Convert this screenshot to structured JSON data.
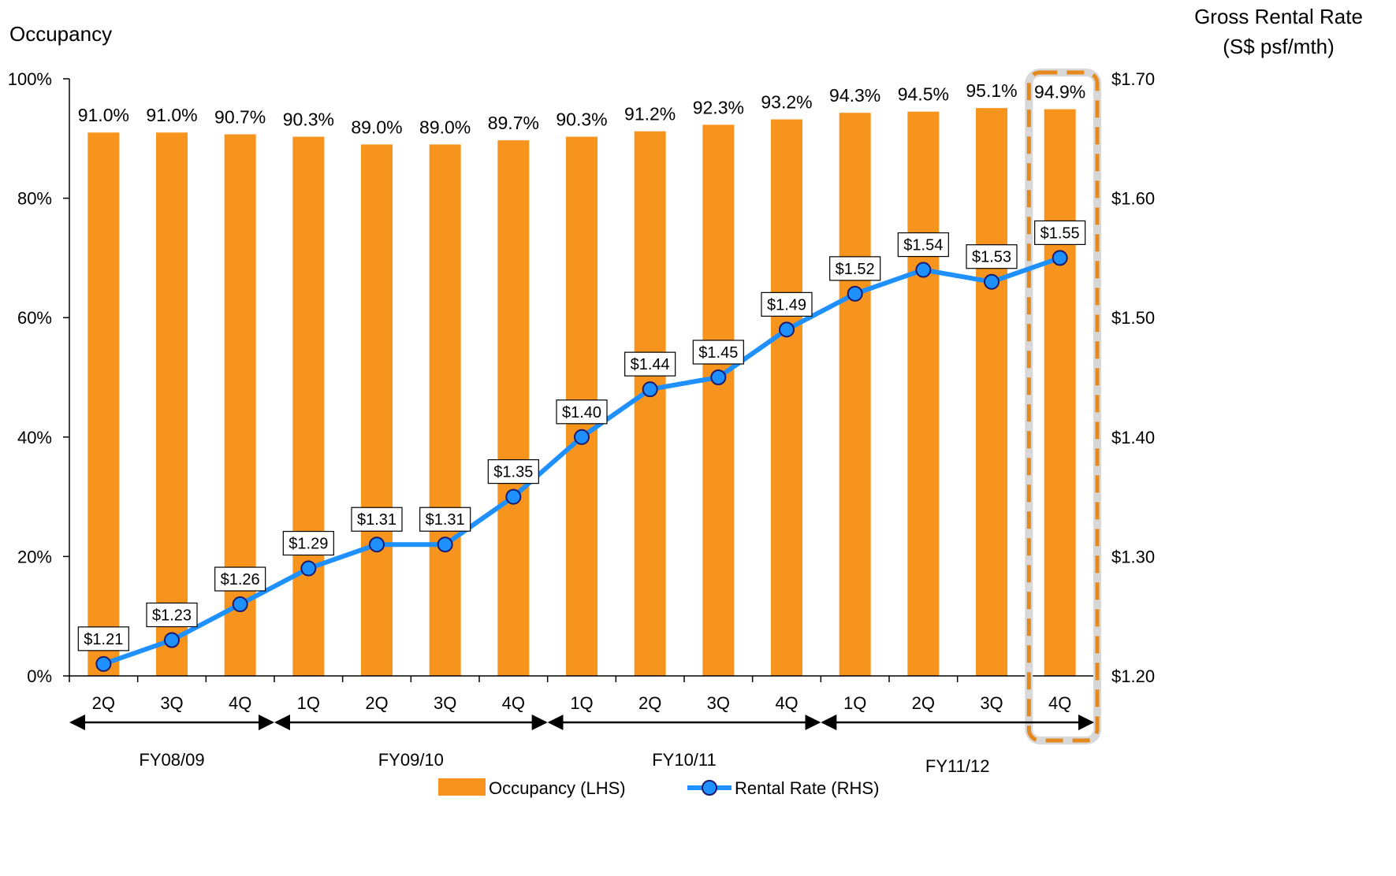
{
  "chart_data": {
    "type": "bar",
    "categories": [
      "2Q",
      "3Q",
      "4Q",
      "1Q",
      "2Q",
      "3Q",
      "4Q",
      "1Q",
      "2Q",
      "3Q",
      "4Q",
      "1Q",
      "2Q",
      "3Q",
      "4Q"
    ],
    "fiscal_years": [
      {
        "label": "FY08/09",
        "start": 0,
        "end": 2
      },
      {
        "label": "FY09/10",
        "start": 3,
        "end": 6
      },
      {
        "label": "FY10/11",
        "start": 7,
        "end": 10
      },
      {
        "label": "FY11/12",
        "start": 11,
        "end": 14
      }
    ],
    "series": [
      {
        "name": "Occupancy (LHS)",
        "kind": "bar",
        "axis": "left",
        "color": "#F7941D",
        "values": [
          91.0,
          91.0,
          90.7,
          90.3,
          89.0,
          89.0,
          89.7,
          90.3,
          91.2,
          92.3,
          93.2,
          94.3,
          94.5,
          95.1,
          94.9
        ],
        "labels": [
          "91.0%",
          "91.0%",
          "90.7%",
          "90.3%",
          "89.0%",
          "89.0%",
          "89.7%",
          "90.3%",
          "91.2%",
          "92.3%",
          "93.2%",
          "94.3%",
          "94.5%",
          "95.1%",
          "94.9%"
        ]
      },
      {
        "name": "Rental Rate (RHS)",
        "kind": "line",
        "axis": "right",
        "color": "#1E90FF",
        "values": [
          1.21,
          1.23,
          1.26,
          1.29,
          1.31,
          1.31,
          1.35,
          1.4,
          1.44,
          1.45,
          1.49,
          1.52,
          1.54,
          1.53,
          1.55
        ],
        "labels": [
          "$1.21",
          "$1.23",
          "$1.26",
          "$1.29",
          "$1.31",
          "$1.31",
          "$1.35",
          "$1.40",
          "$1.44",
          "$1.45",
          "$1.49",
          "$1.52",
          "$1.54",
          "$1.53",
          "$1.55"
        ]
      }
    ],
    "left_axis": {
      "title": "Occupancy",
      "ylim": [
        0,
        100
      ],
      "ticks": [
        0,
        20,
        40,
        60,
        80,
        100
      ],
      "tick_labels": [
        "0%",
        "20%",
        "40%",
        "60%",
        "80%",
        "100%"
      ]
    },
    "right_axis": {
      "title_line1": "Gross Rental Rate",
      "title_line2": "(S$ psf/mth)",
      "ylim": [
        1.2,
        1.7
      ],
      "ticks": [
        1.2,
        1.3,
        1.4,
        1.5,
        1.6,
        1.7
      ],
      "tick_labels": [
        "$1.20",
        "$1.30",
        "$1.40",
        "$1.50",
        "$1.60",
        "$1.70"
      ]
    },
    "highlight_index": 14,
    "highlight_color": "#E5891E",
    "legend_position": "bottom-center",
    "grid": false
  }
}
